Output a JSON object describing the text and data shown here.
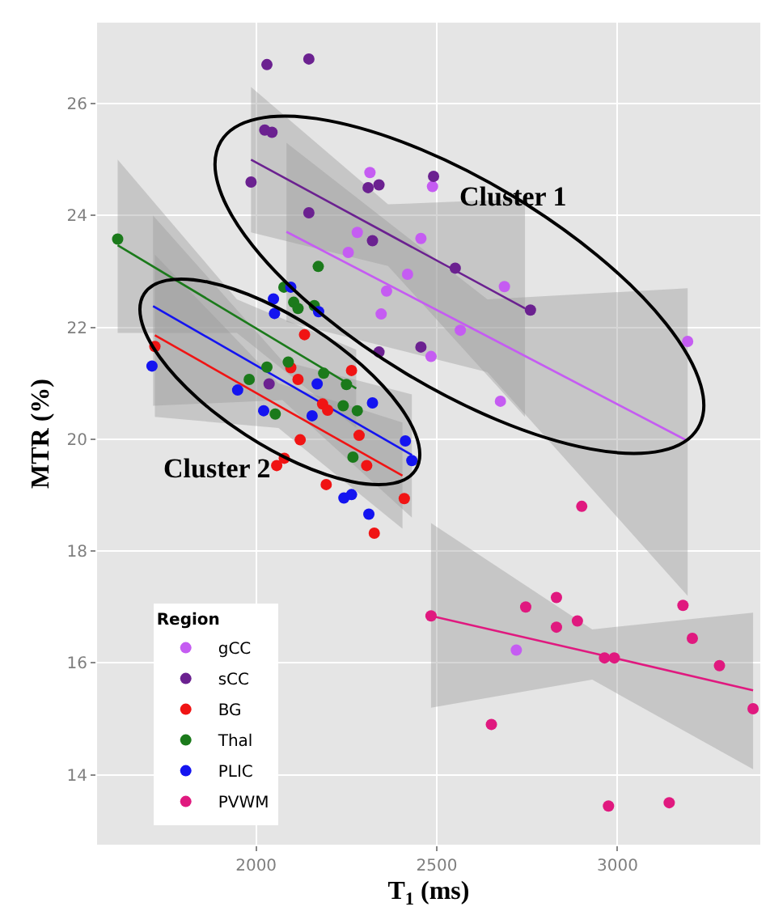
{
  "chart_data": {
    "type": "scatter",
    "xlabel": "T$_{1}$ (ms)",
    "ylabel": "MTR (%)",
    "legend_title": "Region",
    "legend": "bottom left",
    "grid": true,
    "marker": "circle",
    "xlim": [
      1560,
      3395
    ],
    "xticks": [
      2000,
      2500,
      3000
    ],
    "ylim": [
      12.75,
      27.45
    ],
    "yticks": [
      14,
      16,
      18,
      20,
      22,
      24,
      26
    ],
    "annotations": [
      "Cluster 1",
      "Cluster 2"
    ],
    "series": [
      {
        "name": "gCC",
        "color": "#c55cf2",
        "x": [
          2315,
          2488,
          2280,
          2456,
          2255,
          2419,
          2361,
          2346,
          2687,
          2565,
          2484,
          3194,
          2676,
          2720
        ],
        "values": [
          24.77,
          24.52,
          23.7,
          23.59,
          23.34,
          22.95,
          22.65,
          22.24,
          22.73,
          21.95,
          21.48,
          21.75,
          20.68,
          16.23
        ]
      },
      {
        "name": "sCC",
        "color": "#6b2190",
        "x": [
          2030,
          2146,
          2024,
          2044,
          1986,
          2146,
          2310,
          2340,
          2491,
          2322,
          2551,
          2759,
          2456,
          2340,
          2036
        ],
        "values": [
          26.7,
          26.8,
          25.53,
          25.49,
          24.6,
          24.05,
          24.5,
          24.55,
          24.7,
          23.55,
          23.06,
          22.31,
          21.65,
          21.56,
          20.99
        ]
      },
      {
        "name": "BG",
        "color": "#f01414",
        "x": [
          1720,
          2134,
          2096,
          2116,
          2264,
          2184,
          2198,
          2285,
          2122,
          2078,
          2057,
          2306,
          2194,
          2410,
          2327
        ],
        "values": [
          21.66,
          21.87,
          21.28,
          21.07,
          21.23,
          20.63,
          20.52,
          20.07,
          19.99,
          19.66,
          19.53,
          19.53,
          19.19,
          18.94,
          18.32
        ]
      },
      {
        "name": "Thal",
        "color": "#1b7a1b",
        "x": [
          1617,
          2172,
          2077,
          2104,
          2116,
          2161,
          2089,
          2030,
          2187,
          1981,
          2250,
          2241,
          2280,
          2053,
          2268
        ],
        "values": [
          23.58,
          23.09,
          22.72,
          22.45,
          22.34,
          22.39,
          21.38,
          21.29,
          21.18,
          21.07,
          20.98,
          20.6,
          20.51,
          20.45,
          19.68
        ]
      },
      {
        "name": "PLIC",
        "color": "#1414f0",
        "x": [
          2096,
          2048,
          2051,
          2173,
          1712,
          1949,
          2169,
          2021,
          2155,
          2322,
          2413,
          2431,
          2243,
          2264,
          2312
        ],
        "values": [
          22.72,
          22.51,
          22.25,
          22.28,
          21.31,
          20.88,
          20.99,
          20.51,
          20.42,
          20.65,
          19.97,
          19.62,
          18.95,
          19.01,
          18.66
        ]
      },
      {
        "name": "PVWM",
        "color": "#e0197f",
        "x": [
          2484,
          2746,
          2831,
          2831,
          2889,
          2964,
          2991,
          3181,
          3207,
          3282,
          3375,
          2651,
          2975,
          3143,
          2901
        ],
        "values": [
          16.84,
          17.0,
          17.17,
          16.64,
          16.75,
          16.09,
          16.09,
          17.03,
          16.44,
          15.95,
          15.18,
          14.9,
          13.44,
          13.5,
          18.8
        ]
      },
      {
        "type": "line",
        "marker": "none",
        "color": "#c55cf2",
        "x": [
          2084,
          2640,
          3194
        ],
        "values": [
          23.71,
          21.84,
          19.97
        ],
        "lower": [
          22.1,
          21.2,
          17.2
        ],
        "upper": [
          25.3,
          22.5,
          22.7
        ]
      },
      {
        "type": "line",
        "marker": "none",
        "color": "#6b2190",
        "x": [
          1986,
          2365,
          2744
        ],
        "values": [
          25.0,
          23.67,
          22.34
        ],
        "lower": [
          23.7,
          23.1,
          20.4
        ],
        "upper": [
          26.3,
          24.2,
          24.3
        ]
      },
      {
        "type": "line",
        "marker": "none",
        "color": "#f01414",
        "x": [
          1720,
          2062,
          2405
        ],
        "values": [
          21.86,
          20.6,
          19.35
        ],
        "lower": [
          20.4,
          20.2,
          18.4
        ],
        "upper": [
          23.3,
          21.0,
          20.3
        ]
      },
      {
        "type": "line",
        "marker": "none",
        "color": "#1b7a1b",
        "x": [
          1617,
          1947,
          2277
        ],
        "values": [
          23.47,
          22.19,
          20.91
        ],
        "lower": [
          21.9,
          21.9,
          20.2
        ],
        "upper": [
          25.0,
          22.5,
          21.6
        ]
      },
      {
        "type": "line",
        "marker": "none",
        "color": "#1414f0",
        "x": [
          1715,
          2073,
          2431
        ],
        "values": [
          22.38,
          21.05,
          19.72
        ],
        "lower": [
          20.6,
          20.7,
          18.6
        ],
        "upper": [
          24.0,
          21.4,
          20.8
        ]
      },
      {
        "type": "line",
        "marker": "none",
        "color": "#e0197f",
        "x": [
          2484,
          2930,
          3375
        ],
        "values": [
          16.84,
          16.18,
          15.51
        ],
        "lower": [
          15.2,
          15.7,
          14.1
        ],
        "upper": [
          18.5,
          16.6,
          16.9
        ]
      }
    ]
  }
}
